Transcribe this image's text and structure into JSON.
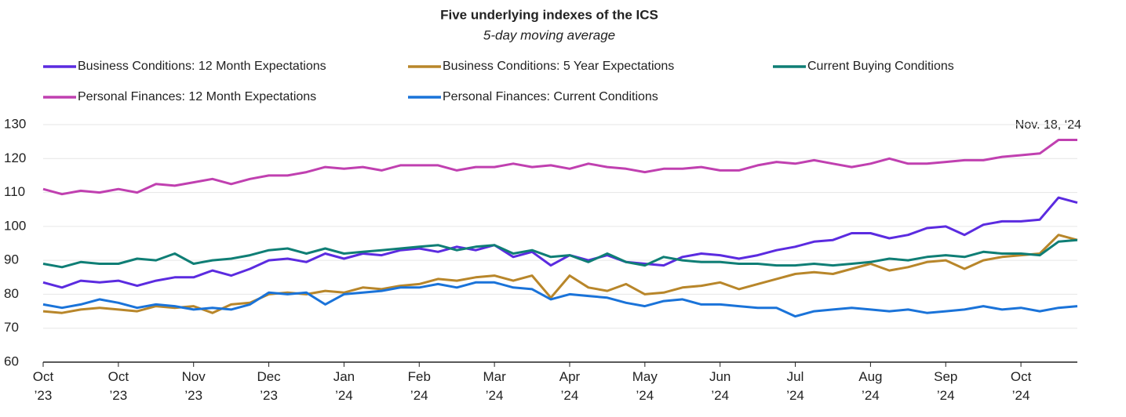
{
  "chart_data": {
    "type": "line",
    "title": "Five underlying indexes of the ICS",
    "subtitle": "5-day moving average",
    "annotation": "Nov. 18, ‘24",
    "categories": [
      "Oct\n’23",
      null,
      null,
      null,
      "Oct\n’23",
      null,
      null,
      null,
      "Nov\n’23",
      null,
      null,
      null,
      "Dec\n’23",
      null,
      null,
      null,
      "Jan\n’24",
      null,
      null,
      null,
      "Feb\n’24",
      null,
      null,
      null,
      "Mar\n’24",
      null,
      null,
      null,
      "Apr\n’24",
      null,
      null,
      null,
      "May\n’24",
      null,
      null,
      null,
      "Jun\n’24",
      null,
      null,
      null,
      "Jul\n’24",
      null,
      null,
      null,
      "Aug\n’24",
      null,
      null,
      null,
      "Sep\n’24",
      null,
      null,
      null,
      "Oct\n’24",
      null,
      null,
      null
    ],
    "series": [
      {
        "name": "Business Conditions: 12 Month Expectations",
        "color": "#5b2be0",
        "values": [
          83.5,
          82,
          84,
          83.5,
          84,
          82.5,
          84,
          85,
          85,
          87,
          85.5,
          87.5,
          90,
          90.5,
          89.5,
          92,
          90.5,
          92,
          91.5,
          93,
          93.5,
          92.5,
          94,
          93,
          94.5,
          91,
          92.5,
          88.5,
          91.5,
          90,
          91.5,
          89.5,
          89,
          88.5,
          91,
          92,
          91.5,
          90.5,
          91.5,
          93,
          94,
          95.5,
          96,
          98,
          98,
          96.5,
          97.5,
          99.5,
          100,
          97.5,
          100.5,
          101.5,
          101.5,
          102,
          108.5,
          107
        ]
      },
      {
        "name": "Business Conditions: 5 Year Expectations",
        "color": "#b8862a",
        "values": [
          75,
          74.5,
          75.5,
          76,
          75.5,
          75,
          76.5,
          76,
          76.5,
          74.5,
          77,
          77.5,
          80,
          80.5,
          80,
          81,
          80.5,
          82,
          81.5,
          82.5,
          83,
          84.5,
          84,
          85,
          85.5,
          84,
          85.5,
          79,
          85.5,
          82,
          81,
          83,
          80,
          80.5,
          82,
          82.5,
          83.5,
          81.5,
          83,
          84.5,
          86,
          86.5,
          86,
          87.5,
          89,
          87,
          88,
          89.5,
          90,
          87.5,
          90,
          91,
          91.5,
          92,
          97.5,
          96
        ]
      },
      {
        "name": "Current Buying Conditions",
        "color": "#0f7e75",
        "values": [
          89,
          88,
          89.5,
          89,
          89,
          90.5,
          90,
          92,
          89,
          90,
          90.5,
          91.5,
          93,
          93.5,
          92,
          93.5,
          92,
          92.5,
          93,
          93.5,
          94,
          94.5,
          93,
          94,
          94.5,
          92,
          93,
          91,
          91.5,
          89.5,
          92,
          89.5,
          88.5,
          91,
          90,
          89.5,
          89.5,
          89,
          89,
          88.5,
          88.5,
          89,
          88.5,
          89,
          89.5,
          90.5,
          90,
          91,
          91.5,
          91,
          92.5,
          92,
          92,
          91.5,
          95.5,
          96
        ]
      },
      {
        "name": "Personal Finances: 12 Month Expectations",
        "color": "#c040b0",
        "values": [
          111,
          109.5,
          110.5,
          110,
          111,
          110,
          112.5,
          112,
          113,
          114,
          112.5,
          114,
          115,
          115,
          116,
          117.5,
          117,
          117.5,
          116.5,
          118,
          118,
          118,
          116.5,
          117.5,
          117.5,
          118.5,
          117.5,
          118,
          117,
          118.5,
          117.5,
          117,
          116,
          117,
          117,
          117.5,
          116.5,
          116.5,
          118,
          119,
          118.5,
          119.5,
          118.5,
          117.5,
          118.5,
          120,
          118.5,
          118.5,
          119,
          119.5,
          119.5,
          120.5,
          121,
          121.5,
          125.5,
          125.5
        ]
      },
      {
        "name": "Personal Finances: Current Conditions",
        "color": "#1a73d9",
        "values": [
          77,
          76,
          77,
          78.5,
          77.5,
          76,
          77,
          76.5,
          75.5,
          76,
          75.5,
          77,
          80.5,
          80,
          80.5,
          77,
          80,
          80.5,
          81,
          82,
          82,
          83,
          82,
          83.5,
          83.5,
          82,
          81.5,
          78.5,
          80,
          79.5,
          79,
          77.5,
          76.5,
          78,
          78.5,
          77,
          77,
          76.5,
          76,
          76,
          73.5,
          75,
          75.5,
          76,
          75.5,
          75,
          75.5,
          74.5,
          75,
          75.5,
          76.5,
          75.5,
          76,
          75,
          76,
          76.5
        ]
      }
    ],
    "ylim": [
      60,
      130
    ],
    "yticks": [
      60,
      70,
      80,
      90,
      100,
      110,
      120,
      130
    ],
    "grid": true
  }
}
